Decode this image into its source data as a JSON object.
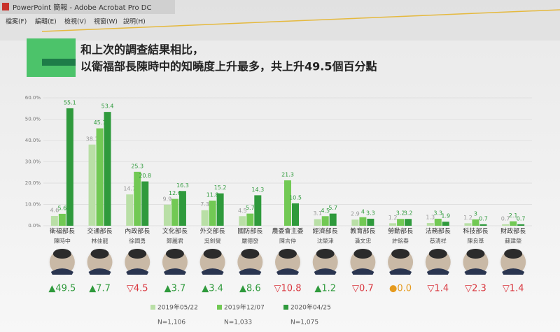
{
  "window": {
    "title": "PowerPoint 簡報 - Adobe Acrobat Pro DC",
    "menus": [
      "檔案(F)",
      "編輯(E)",
      "檢視(V)",
      "視窗(W)",
      "說明(H)"
    ]
  },
  "chart_data": {
    "type": "bar",
    "title": [
      "和上次的調查結果相比，",
      "以衛福部長陳時中的知曉度上升最多，共上升49.5個百分點"
    ],
    "categories": [
      "衛福部長",
      "交通部長",
      "內政部長",
      "文化部長",
      "外交部長",
      "國防部長",
      "農委會主委",
      "經濟部長",
      "教育部長",
      "勞動部長",
      "法務部長",
      "科技部長",
      "財政部長"
    ],
    "people": [
      "陳時中",
      "林佳龍",
      "徐國勇",
      "鄭麗君",
      "吳釗燮",
      "嚴德發",
      "陳吉仲",
      "沈榮津",
      "潘文忠",
      "許銘春",
      "蔡清祥",
      "陳良基",
      "蘇建榮"
    ],
    "series": [
      {
        "name": "2019年05/22",
        "n": "N=1,106",
        "color": "#b9dfa6",
        "values": [
          4.6,
          38.1,
          14.7,
          9.9,
          7.3,
          4.5,
          null,
          3.1,
          2.9,
          1.2,
          1.3,
          1.2,
          0.7
        ]
      },
      {
        "name": "2019年12/07",
        "n": "N=1,033",
        "color": "#72c954",
        "values": [
          5.6,
          45.7,
          25.3,
          12.6,
          11.8,
          5.7,
          21.3,
          4.5,
          4.0,
          3.2,
          3.3,
          3.0,
          2.1
        ]
      },
      {
        "name": "2020年04/25",
        "n": "N=1,075",
        "color": "#2f9a3c",
        "values": [
          55.1,
          53.4,
          20.8,
          16.3,
          15.2,
          14.3,
          10.5,
          5.7,
          3.3,
          3.2,
          1.9,
          0.7,
          0.7
        ]
      }
    ],
    "changes": [
      "▲49.5",
      "▲7.7",
      "▽4.5",
      "▲3.7",
      "▲3.4",
      "▲8.6",
      "▽10.8",
      "▲1.2",
      "▽0.7",
      "●0.0",
      "▽1.4",
      "▽2.3",
      "▽1.4"
    ],
    "change_colors": {
      "▲": "#2f9a3c",
      "▽": "#d9363e",
      "●": "#e59a1e"
    },
    "ylim": [
      0,
      60
    ],
    "yticks": [
      {
        "value": 0,
        "label": "0.0%"
      },
      {
        "value": 10,
        "label": "10.0%"
      },
      {
        "value": 20,
        "label": "20.0%"
      },
      {
        "value": 30,
        "label": "30.0%"
      },
      {
        "value": 40,
        "label": "40.0%"
      },
      {
        "value": 50,
        "label": "50.0%"
      },
      {
        "value": 60,
        "label": "60.0%"
      }
    ],
    "grid": true
  }
}
